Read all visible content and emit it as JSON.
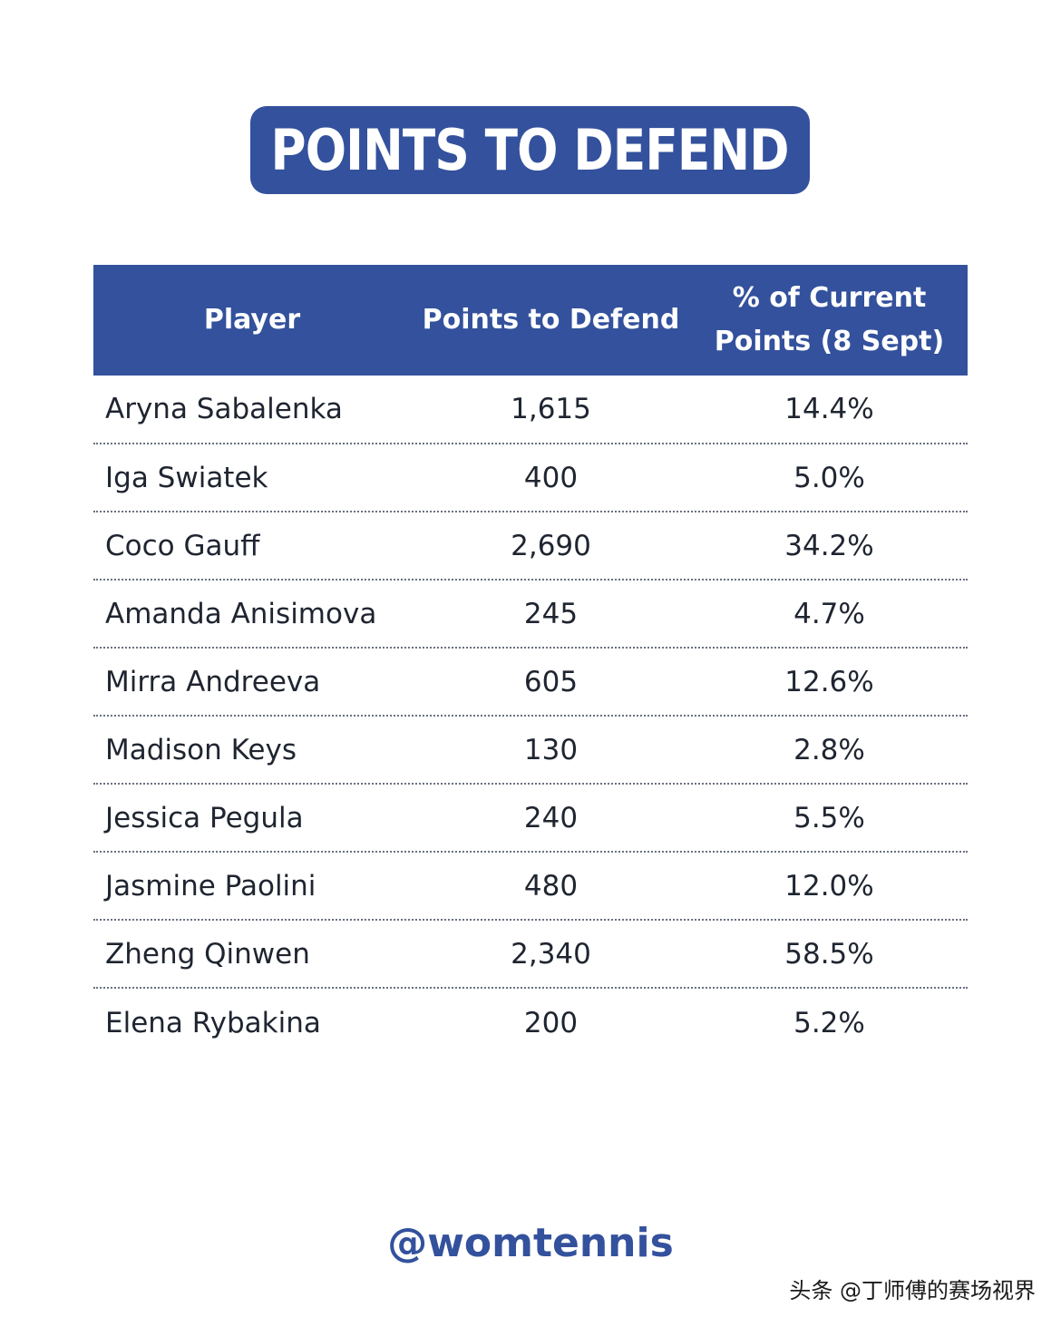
{
  "title": "POINTS TO DEFEND",
  "handle": "@womtennis",
  "watermark": "头条 @丁师傅的赛场视界",
  "colors": {
    "accent": "#33519c",
    "text": "#1f2530",
    "background": "#ffffff"
  },
  "chart_data": {
    "type": "table",
    "title": "POINTS TO DEFEND",
    "columns": [
      "Player",
      "Points to Defend",
      "% of Current\nPoints (8 Sept)"
    ],
    "rows": [
      [
        "Aryna Sabalenka",
        "1,615",
        "14.4%"
      ],
      [
        "Iga Swiatek",
        "400",
        "5.0%"
      ],
      [
        "Coco Gauff",
        "2,690",
        "34.2%"
      ],
      [
        "Amanda Anisimova",
        "245",
        "4.7%"
      ],
      [
        "Mirra Andreeva",
        "605",
        "12.6%"
      ],
      [
        "Madison Keys",
        "130",
        "2.8%"
      ],
      [
        "Jessica Pegula",
        "240",
        "5.5%"
      ],
      [
        "Jasmine Paolini",
        "480",
        "12.0%"
      ],
      [
        "Zheng Qinwen",
        "2,340",
        "58.5%"
      ],
      [
        "Elena Rybakina",
        "200",
        "5.2%"
      ]
    ]
  }
}
